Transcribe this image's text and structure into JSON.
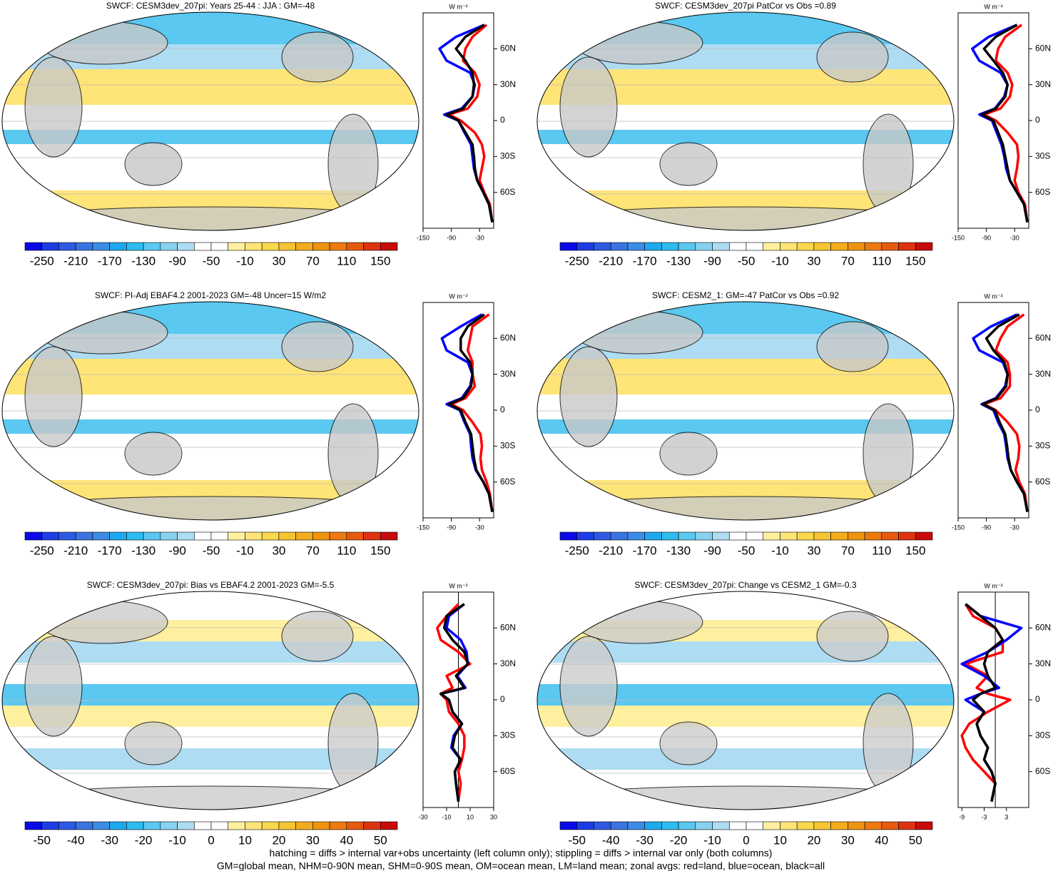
{
  "chart_data": [
    {
      "type": "map",
      "title": "SWCF: CESM3dev_207pi: Years 25-44 : JJA : GM=-48",
      "colorbar": {
        "lim": [
          -270,
          170
        ],
        "ticks": [
          -250,
          -210,
          -170,
          -130,
          -90,
          -50,
          -10,
          30,
          70,
          110,
          150
        ],
        "colors": [
          "#0a0ae6",
          "#1e3ce6",
          "#2d5ae1",
          "#3a74e0",
          "#3c8ce6",
          "#1ea8ee",
          "#2cbcf0",
          "#5ac8f0",
          "#86d2f0",
          "#aedcf2",
          "#ffffff",
          "#ffffff",
          "#fff0a0",
          "#ffe478",
          "#f9d84c",
          "#f5c432",
          "#f3ac1e",
          "#ef9410",
          "#ec7a10",
          "#e65a10",
          "#dc3410",
          "#c80a0a"
        ]
      },
      "zonal": {
        "type": "line",
        "x_label": "W m⁻²",
        "xlim": [
          -150,
          0
        ],
        "xticks": [
          -150,
          -90,
          -30
        ],
        "ylim": [
          -90,
          90
        ],
        "yticks": [
          {
            "value": 60,
            "label": "60N"
          },
          {
            "value": 30,
            "label": "30N"
          },
          0,
          {
            "value": -30,
            "label": "30S"
          },
          {
            "value": -60,
            "label": "60S"
          }
        ],
        "y": [
          -85,
          -70,
          -60,
          -50,
          -40,
          -30,
          -20,
          -10,
          0,
          5,
          10,
          20,
          30,
          40,
          50,
          60,
          70,
          80
        ],
        "zero_line": false,
        "series": [
          {
            "color": "#ff0000",
            "values": [
              -3,
              -8,
              -20,
              -30,
              -25,
              -20,
              -25,
              -40,
              -70,
              -95,
              -55,
              -35,
              -30,
              -40,
              -65,
              -60,
              -45,
              -15
            ]
          },
          {
            "color": "#0000ff",
            "values": [
              -3,
              -10,
              -22,
              -35,
              -42,
              -45,
              -48,
              -62,
              -75,
              -105,
              -68,
              -45,
              -40,
              -50,
              -100,
              -115,
              -80,
              -20
            ]
          },
          {
            "color": "#000000",
            "values": [
              -3,
              -10,
              -22,
              -35,
              -40,
              -42,
              -45,
              -60,
              -75,
              -100,
              -65,
              -45,
              -42,
              -45,
              -60,
              -80,
              -60,
              -20
            ]
          }
        ]
      }
    },
    {
      "type": "map",
      "title": "SWCF: CESM3dev_207pi PatCor vs Obs =0.89",
      "colorbar": {
        "lim": [
          -270,
          170
        ],
        "ticks": [
          -250,
          -210,
          -170,
          -130,
          -90,
          -50,
          -10,
          30,
          70,
          110,
          150
        ],
        "colors": [
          "#0a0ae6",
          "#1e3ce6",
          "#2d5ae1",
          "#3a74e0",
          "#3c8ce6",
          "#1ea8ee",
          "#2cbcf0",
          "#5ac8f0",
          "#86d2f0",
          "#aedcf2",
          "#ffffff",
          "#ffffff",
          "#fff0a0",
          "#ffe478",
          "#f9d84c",
          "#f5c432",
          "#f3ac1e",
          "#ef9410",
          "#ec7a10",
          "#e65a10",
          "#dc3410",
          "#c80a0a"
        ]
      },
      "zonal": {
        "type": "line",
        "x_label": "W m⁻²",
        "xlim": [
          -150,
          0
        ],
        "xticks": [
          -150,
          -90,
          -30
        ],
        "ylim": [
          -90,
          90
        ],
        "yticks": [
          {
            "value": 60,
            "label": "60N"
          },
          {
            "value": 30,
            "label": "30N"
          },
          0,
          {
            "value": -30,
            "label": "30S"
          },
          {
            "value": -60,
            "label": "60S"
          }
        ],
        "y": [
          -85,
          -70,
          -60,
          -50,
          -40,
          -30,
          -20,
          -10,
          0,
          5,
          10,
          20,
          30,
          40,
          50,
          60,
          70,
          80
        ],
        "zero_line": false,
        "series": [
          {
            "color": "#ff0000",
            "values": [
              -3,
              -8,
              -22,
              -30,
              -25,
              -22,
              -25,
              -45,
              -70,
              -95,
              -60,
              -40,
              -35,
              -45,
              -70,
              -65,
              -50,
              -15
            ]
          },
          {
            "color": "#0000ff",
            "values": [
              -3,
              -10,
              -25,
              -40,
              -48,
              -52,
              -58,
              -68,
              -78,
              -105,
              -72,
              -52,
              -45,
              -60,
              -105,
              -120,
              -85,
              -25
            ]
          },
          {
            "color": "#000000",
            "values": [
              -3,
              -10,
              -25,
              -40,
              -45,
              -50,
              -55,
              -65,
              -75,
              -100,
              -70,
              -50,
              -45,
              -55,
              -75,
              -95,
              -70,
              -25
            ]
          }
        ]
      }
    },
    {
      "type": "map",
      "title": "SWCF: PI-Adj EBAF4.2 2001-2023 GM=-48 Uncer=15 W/m2",
      "colorbar": {
        "lim": [
          -270,
          170
        ],
        "ticks": [
          -250,
          -210,
          -170,
          -130,
          -90,
          -50,
          -10,
          30,
          70,
          110,
          150
        ],
        "colors": [
          "#0a0ae6",
          "#1e3ce6",
          "#2d5ae1",
          "#3a74e0",
          "#3c8ce6",
          "#1ea8ee",
          "#2cbcf0",
          "#5ac8f0",
          "#86d2f0",
          "#aedcf2",
          "#ffffff",
          "#ffffff",
          "#fff0a0",
          "#ffe478",
          "#f9d84c",
          "#f5c432",
          "#f3ac1e",
          "#ef9410",
          "#ec7a10",
          "#e65a10",
          "#dc3410",
          "#c80a0a"
        ]
      },
      "zonal": {
        "type": "line",
        "x_label": "W m⁻²",
        "xlim": [
          -150,
          0
        ],
        "xticks": [
          -150,
          -90,
          -30
        ],
        "ylim": [
          -90,
          90
        ],
        "yticks": [
          {
            "value": 60,
            "label": "60N"
          },
          {
            "value": 30,
            "label": "30N"
          },
          0,
          {
            "value": -30,
            "label": "30S"
          },
          {
            "value": -60,
            "label": "60S"
          }
        ],
        "y": [
          -85,
          -70,
          -60,
          -50,
          -40,
          -30,
          -20,
          -10,
          0,
          5,
          10,
          20,
          30,
          40,
          50,
          60,
          70,
          80
        ],
        "zero_line": false,
        "series": [
          {
            "color": "#ff0000",
            "values": [
              -3,
              -8,
              -15,
              -25,
              -28,
              -25,
              -28,
              -45,
              -65,
              -90,
              -60,
              -40,
              -45,
              -45,
              -55,
              -50,
              -45,
              -10
            ]
          },
          {
            "color": "#0000ff",
            "values": [
              -3,
              -10,
              -22,
              -38,
              -45,
              -48,
              -50,
              -62,
              -72,
              -100,
              -68,
              -50,
              -45,
              -55,
              -100,
              -110,
              -70,
              -25
            ]
          },
          {
            "color": "#000000",
            "values": [
              -3,
              -10,
              -22,
              -37,
              -42,
              -45,
              -48,
              -60,
              -70,
              -95,
              -65,
              -48,
              -45,
              -50,
              -70,
              -70,
              -55,
              -20
            ]
          }
        ]
      }
    },
    {
      "type": "map",
      "title": "SWCF: CESM2_1: GM=-47 PatCor vs Obs =0.92",
      "colorbar": {
        "lim": [
          -270,
          170
        ],
        "ticks": [
          -250,
          -210,
          -170,
          -130,
          -90,
          -50,
          -10,
          30,
          70,
          110,
          150
        ],
        "colors": [
          "#0a0ae6",
          "#1e3ce6",
          "#2d5ae1",
          "#3a74e0",
          "#3c8ce6",
          "#1ea8ee",
          "#2cbcf0",
          "#5ac8f0",
          "#86d2f0",
          "#aedcf2",
          "#ffffff",
          "#ffffff",
          "#fff0a0",
          "#ffe478",
          "#f9d84c",
          "#f5c432",
          "#f3ac1e",
          "#ef9410",
          "#ec7a10",
          "#e65a10",
          "#dc3410",
          "#c80a0a"
        ]
      },
      "zonal": {
        "type": "line",
        "x_label": "W m⁻²",
        "xlim": [
          -150,
          0
        ],
        "xticks": [
          -150,
          -90,
          -30
        ],
        "ylim": [
          -90,
          90
        ],
        "yticks": [
          {
            "value": 60,
            "label": "60N"
          },
          {
            "value": 30,
            "label": "30N"
          },
          0,
          {
            "value": -30,
            "label": "30S"
          },
          {
            "value": -60,
            "label": "60S"
          }
        ],
        "y": [
          -85,
          -70,
          -60,
          -50,
          -40,
          -30,
          -20,
          -10,
          0,
          5,
          10,
          20,
          30,
          40,
          50,
          60,
          70,
          80
        ],
        "zero_line": false,
        "series": [
          {
            "color": "#ff0000",
            "values": [
              -3,
              -8,
              -20,
              -28,
              -22,
              -20,
              -25,
              -45,
              -70,
              -95,
              -60,
              -40,
              -40,
              -45,
              -70,
              -60,
              -45,
              -10
            ]
          },
          {
            "color": "#0000ff",
            "values": [
              -3,
              -10,
              -25,
              -38,
              -45,
              -48,
              -52,
              -65,
              -75,
              -100,
              -70,
              -50,
              -45,
              -55,
              -105,
              -118,
              -80,
              -25
            ]
          },
          {
            "color": "#000000",
            "values": [
              -3,
              -10,
              -25,
              -38,
              -43,
              -46,
              -50,
              -62,
              -72,
              -98,
              -68,
              -48,
              -45,
              -52,
              -75,
              -90,
              -65,
              -20
            ]
          }
        ]
      }
    },
    {
      "type": "map",
      "title": "SWCF: CESM3dev_207pi: Bias vs EBAF4.2 2001-2023 GM=-5.5",
      "colorbar": {
        "lim": [
          -55,
          55
        ],
        "ticks": [
          -50,
          -40,
          -30,
          -20,
          -10,
          0,
          10,
          20,
          30,
          40,
          50
        ],
        "colors": [
          "#0a0ae6",
          "#1e3ce6",
          "#2d5ae1",
          "#3a74e0",
          "#3c8ce6",
          "#1ea8ee",
          "#2cbcf0",
          "#5ac8f0",
          "#86d2f0",
          "#aedcf2",
          "#ffffff",
          "#ffffff",
          "#fff0a0",
          "#ffe478",
          "#f9d84c",
          "#f5c432",
          "#f3ac1e",
          "#ef9410",
          "#ec7a10",
          "#e65a10",
          "#dc3410",
          "#c80a0a"
        ]
      },
      "zonal": {
        "type": "line",
        "x_label": "W m⁻²",
        "xlim": [
          -30,
          30
        ],
        "xticks": [
          -30,
          -10,
          10,
          30
        ],
        "ylim": [
          -90,
          90
        ],
        "yticks": [
          {
            "value": 60,
            "label": "60N"
          },
          {
            "value": 30,
            "label": "30N"
          },
          0,
          {
            "value": -30,
            "label": "30S"
          },
          {
            "value": -60,
            "label": "60S"
          }
        ],
        "y": [
          -85,
          -70,
          -60,
          -50,
          -40,
          -30,
          -20,
          -10,
          0,
          5,
          10,
          20,
          30,
          40,
          50,
          60,
          70,
          80
        ],
        "zero_line": true,
        "series": [
          {
            "color": "#ff0000",
            "values": [
              0,
              2,
              0,
              3,
              5,
              5,
              0,
              -8,
              -10,
              -15,
              -5,
              -10,
              10,
              0,
              -15,
              -18,
              -10,
              0
            ]
          },
          {
            "color": "#0000ff",
            "values": [
              0,
              -2,
              -3,
              2,
              -6,
              -4,
              3,
              -5,
              -8,
              -15,
              6,
              -1,
              8,
              7,
              2,
              -10,
              -8,
              5
            ]
          },
          {
            "color": "#000000",
            "values": [
              0,
              -2,
              -3,
              2,
              -5,
              -3,
              3,
              -5,
              -8,
              -15,
              5,
              -2,
              8,
              5,
              -5,
              -12,
              -10,
              5
            ]
          }
        ]
      }
    },
    {
      "type": "map",
      "title": "SWCF: CESM3dev_207pi: Change vs CESM2_1 GM=-0.3",
      "colorbar": {
        "lim": [
          -55,
          55
        ],
        "ticks": [
          -50,
          -40,
          -30,
          -20,
          -10,
          0,
          10,
          20,
          30,
          40,
          50
        ],
        "colors": [
          "#0a0ae6",
          "#1e3ce6",
          "#2d5ae1",
          "#3a74e0",
          "#3c8ce6",
          "#1ea8ee",
          "#2cbcf0",
          "#5ac8f0",
          "#86d2f0",
          "#aedcf2",
          "#ffffff",
          "#ffffff",
          "#fff0a0",
          "#ffe478",
          "#f9d84c",
          "#f5c432",
          "#f3ac1e",
          "#ef9410",
          "#ec7a10",
          "#e65a10",
          "#dc3410",
          "#c80a0a"
        ]
      },
      "zonal": {
        "type": "line",
        "x_label": "W m⁻²",
        "xlim": [
          -10,
          9
        ],
        "xticks": [
          -9,
          -3,
          3
        ],
        "ylim": [
          -90,
          90
        ],
        "yticks": [
          {
            "value": 60,
            "label": "60N"
          },
          {
            "value": 30,
            "label": "30N"
          },
          0,
          {
            "value": -30,
            "label": "30S"
          },
          {
            "value": -60,
            "label": "60S"
          }
        ],
        "y": [
          -85,
          -70,
          -60,
          -50,
          -40,
          -30,
          -20,
          -10,
          0,
          5,
          10,
          20,
          30,
          40,
          50,
          60,
          70,
          80
        ],
        "zero_line": true,
        "series": [
          {
            "color": "#ff0000",
            "values": [
              -1,
              0,
              -3,
              -6,
              -8,
              -9,
              -7,
              -2,
              4,
              -2,
              -5,
              -2,
              -8,
              2,
              2,
              0,
              -6,
              -8
            ]
          },
          {
            "color": "#0000ff",
            "values": [
              -1,
              0,
              -1,
              -3,
              -2,
              -4,
              -5,
              -3,
              -8,
              -4,
              1,
              -3,
              -9,
              -2,
              3,
              7,
              -4,
              -8
            ]
          },
          {
            "color": "#000000",
            "values": [
              -1,
              0,
              -1,
              -3,
              -2,
              -4,
              -5,
              -3,
              -6,
              -4,
              0,
              -2,
              -3,
              -2,
              2,
              0,
              -4,
              -8
            ]
          }
        ]
      }
    }
  ],
  "footer": [
    "hatching = diffs > internal var+obs uncertainty (left column only); stippling = diffs > internal var only (both columns)",
    "GM=global mean, NHM=0-90N mean, SHM=0-90S mean, OM=ocean mean, LM=land mean; zonal avgs: red=land, blue=ocean, black=all"
  ]
}
